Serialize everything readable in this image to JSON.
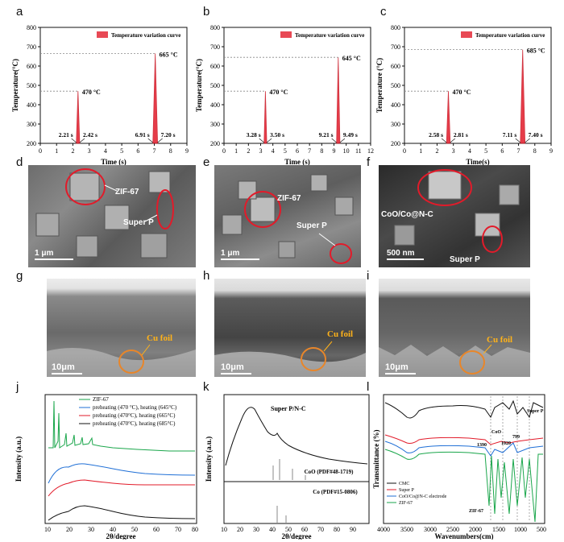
{
  "panel_labels": [
    "a",
    "b",
    "c",
    "d",
    "e",
    "f",
    "g",
    "h",
    "i",
    "j",
    "k",
    "l"
  ],
  "temp_charts": [
    {
      "legend": "Temperature variation curve",
      "xlabel": "Time (s)",
      "ylabel": "Temperature(°C)",
      "xmax": 9,
      "pulses": [
        {
          "t0": 2.21,
          "t1": 2.42,
          "peak": 470,
          "label": "470 °C"
        },
        {
          "t0": 6.91,
          "t1": 7.2,
          "peak": 665,
          "label": "665 °C"
        }
      ],
      "time_labels": [
        "2.21 s",
        "2.42 s",
        "6.91 s",
        "7.20 s"
      ]
    },
    {
      "legend": "Temperature variation curve",
      "xlabel": "Time (s)",
      "ylabel": "Temperature(°C)",
      "xmax": 12,
      "pulses": [
        {
          "t0": 3.28,
          "t1": 3.5,
          "peak": 470,
          "label": "470 °C"
        },
        {
          "t0": 9.21,
          "t1": 9.49,
          "peak": 645,
          "label": "645 °C"
        }
      ],
      "time_labels": [
        "3.28 s",
        "3.50 s",
        "9.21 s",
        "9.49 s"
      ]
    },
    {
      "legend": "Temperature variation curve",
      "xlabel": "Time(s)",
      "ylabel": "Temperature (°C)",
      "xmax": 9,
      "pulses": [
        {
          "t0": 2.58,
          "t1": 2.81,
          "peak": 470,
          "label": "470 °C"
        },
        {
          "t0": 7.11,
          "t1": 7.4,
          "peak": 685,
          "label": "685 °C"
        }
      ],
      "time_labels": [
        "2.58 s",
        "2.81 s",
        "7.11 s",
        "7.40 s"
      ]
    }
  ],
  "sem_top": [
    {
      "labels": [
        "ZIF-67",
        "Super P"
      ],
      "scale": "1 μm"
    },
    {
      "labels": [
        "ZIF-67",
        "Super P"
      ],
      "scale": "1 μm"
    },
    {
      "labels": [
        "CoO/Co@N-C",
        "Super P"
      ],
      "scale": "500 nm"
    }
  ],
  "sem_cross": [
    {
      "label": "Cu foil",
      "scale": "10μm"
    },
    {
      "label": "Cu foil",
      "scale": "10μm"
    },
    {
      "label": "Cu foil",
      "scale": "10μm"
    }
  ],
  "xrd_j": {
    "xlabel": "2θ/degree",
    "ylabel": "Intensity (a.u.)",
    "legend": [
      "ZIF-67",
      "preheating (470 °C), heating (645°C)",
      "preheating (470°C), heating (665°C)",
      "preheating (470°C), heating (685°C)"
    ]
  },
  "xrd_k": {
    "xlabel": "2θ/degree",
    "ylabel": "Intensity (a.u.)",
    "curve_label": "Super P/N-C",
    "ref1": "CoO (PDF#48-1719)",
    "ref2": "Co (PDF#15-0806)"
  },
  "ftir_l": {
    "xlabel": "Wavenumbers(cm)",
    "ylabel": "Transmittance (%)",
    "legend": [
      "CMC",
      "Super P",
      "CoO/Co@N-C electrode",
      "ZIF-67"
    ],
    "annotations": [
      "Super P",
      "CoO",
      "799",
      "1020",
      "1390",
      "ZIF-67"
    ]
  },
  "colors": {
    "red": "#e21b2a",
    "blue": "#1f6fd6",
    "green": "#1aa64b",
    "black": "#111111",
    "orange": "#e8862a"
  },
  "chart_data": [
    {
      "type": "line",
      "title": "a",
      "xlabel": "Time (s)",
      "ylabel": "Temperature(°C)",
      "xlim": [
        0,
        9
      ],
      "ylim": [
        200,
        800
      ],
      "series": [
        {
          "name": "Temperature variation curve",
          "x": [
            2.21,
            2.3,
            2.42,
            6.91,
            7.05,
            7.2
          ],
          "y": [
            200,
            470,
            200,
            200,
            665,
            200
          ]
        }
      ]
    },
    {
      "type": "line",
      "title": "b",
      "xlabel": "Time (s)",
      "ylabel": "Temperature(°C)",
      "xlim": [
        0,
        12
      ],
      "ylim": [
        200,
        800
      ],
      "series": [
        {
          "name": "Temperature variation curve",
          "x": [
            3.28,
            3.38,
            3.5,
            9.21,
            9.35,
            9.49
          ],
          "y": [
            200,
            470,
            200,
            200,
            645,
            200
          ]
        }
      ]
    },
    {
      "type": "line",
      "title": "c",
      "xlabel": "Time(s)",
      "ylabel": "Temperature (°C)",
      "xlim": [
        0,
        9
      ],
      "ylim": [
        200,
        800
      ],
      "series": [
        {
          "name": "Temperature variation curve",
          "x": [
            2.58,
            2.7,
            2.81,
            7.11,
            7.25,
            7.4
          ],
          "y": [
            200,
            470,
            200,
            200,
            685,
            200
          ]
        }
      ]
    }
  ]
}
